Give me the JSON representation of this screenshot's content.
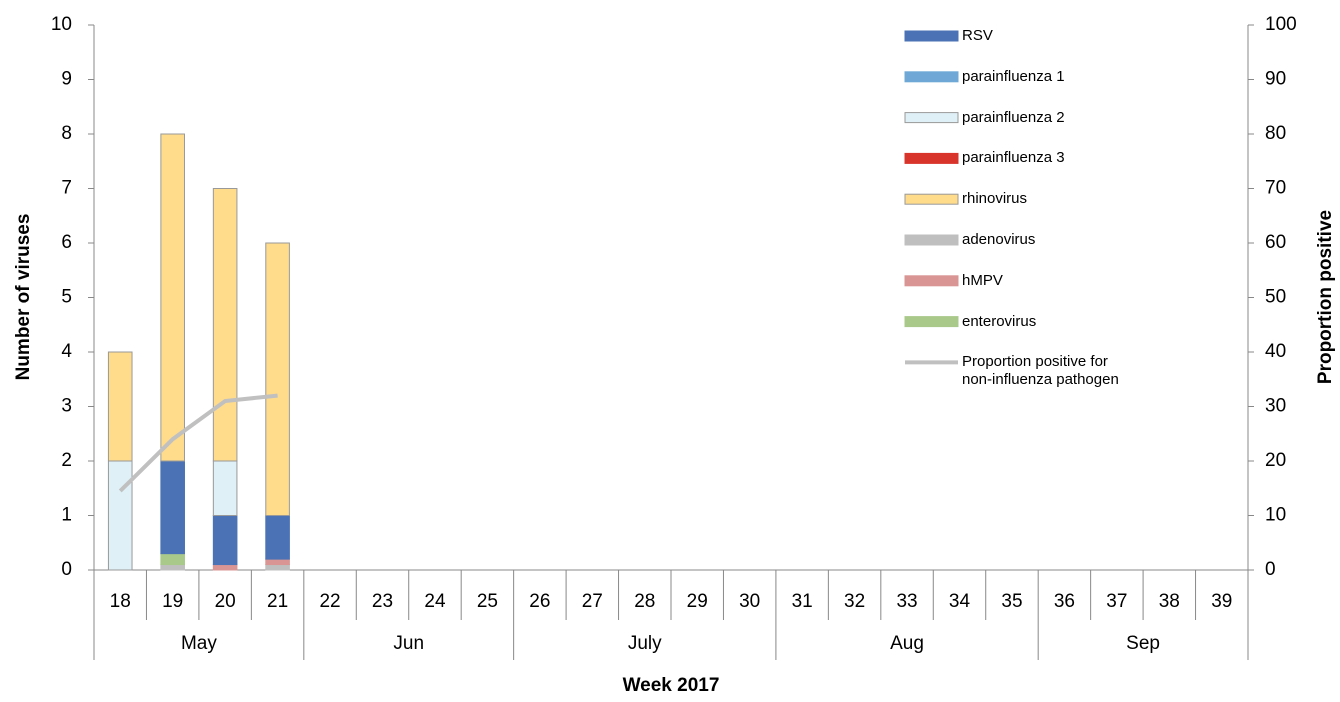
{
  "chart_data": {
    "type": "bar",
    "y_label": "Number of viruses",
    "y2_label": "Proportion positive",
    "x_label": "Week 2017",
    "categories": [
      "18",
      "19",
      "20",
      "21",
      "22",
      "23",
      "24",
      "25",
      "26",
      "27",
      "28",
      "29",
      "30",
      "31",
      "32",
      "33",
      "34",
      "35",
      "36",
      "37",
      "38",
      "39"
    ],
    "months": [
      "May",
      null,
      null,
      null,
      "Jun",
      null,
      null,
      null,
      "July",
      null,
      null,
      null,
      null,
      "Aug",
      null,
      null,
      null,
      null,
      "Sep",
      null,
      null,
      null
    ],
    "ylim": [
      0,
      10
    ],
    "yticks": [
      0,
      1,
      2,
      3,
      4,
      5,
      6,
      7,
      8,
      9,
      10
    ],
    "y2lim": [
      0,
      100
    ],
    "y2ticks": [
      0,
      10,
      20,
      30,
      40,
      50,
      60,
      70,
      80,
      90,
      100
    ],
    "stacked": true,
    "series": [
      {
        "name": "RSV",
        "color": "#4a72b5",
        "values": [
          0,
          1.7,
          0.9,
          0.8,
          null,
          null,
          null,
          null,
          null,
          null,
          null,
          null,
          null,
          null,
          null,
          null,
          null,
          null,
          null,
          null,
          null,
          null
        ]
      },
      {
        "name": "parainfluenza 1",
        "color": "#6fa8d6",
        "values": [
          0,
          0,
          0,
          0,
          null,
          null,
          null,
          null,
          null,
          null,
          null,
          null,
          null,
          null,
          null,
          null,
          null,
          null,
          null,
          null,
          null,
          null
        ]
      },
      {
        "name": "parainfluenza 2",
        "color": "#dff0f7",
        "values": [
          2,
          0,
          1,
          0,
          null,
          null,
          null,
          null,
          null,
          null,
          null,
          null,
          null,
          null,
          null,
          null,
          null,
          null,
          null,
          null,
          null,
          null
        ]
      },
      {
        "name": "parainfluenza 3",
        "color": "#d9342b",
        "values": [
          0,
          0,
          0,
          0,
          null,
          null,
          null,
          null,
          null,
          null,
          null,
          null,
          null,
          null,
          null,
          null,
          null,
          null,
          null,
          null,
          null,
          null
        ]
      },
      {
        "name": "rhinovirus",
        "color": "#ffdb8c",
        "values": [
          2,
          6,
          5,
          5,
          null,
          null,
          null,
          null,
          null,
          null,
          null,
          null,
          null,
          null,
          null,
          null,
          null,
          null,
          null,
          null,
          null,
          null
        ]
      },
      {
        "name": "adenovirus",
        "color": "#bfbfbf",
        "values": [
          0,
          0.1,
          0,
          0.1,
          null,
          null,
          null,
          null,
          null,
          null,
          null,
          null,
          null,
          null,
          null,
          null,
          null,
          null,
          null,
          null,
          null,
          null
        ]
      },
      {
        "name": "hMPV",
        "color": "#d99594",
        "values": [
          0,
          0,
          0.1,
          0.1,
          null,
          null,
          null,
          null,
          null,
          null,
          null,
          null,
          null,
          null,
          null,
          null,
          null,
          null,
          null,
          null,
          null,
          null
        ]
      },
      {
        "name": "enterovirus",
        "color": "#a9c98a",
        "values": [
          0,
          0.2,
          0,
          0,
          null,
          null,
          null,
          null,
          null,
          null,
          null,
          null,
          null,
          null,
          null,
          null,
          null,
          null,
          null,
          null,
          null,
          null
        ]
      },
      {
        "name": "Proportion positive for non-influenza pathogen",
        "type": "line",
        "axis": "y2",
        "color": "#c0c0c0",
        "values": [
          14.5,
          24,
          31,
          32,
          null,
          null,
          null,
          null,
          null,
          null,
          null,
          null,
          null,
          null,
          null,
          null,
          null,
          null,
          null,
          null,
          null,
          null
        ]
      }
    ]
  }
}
